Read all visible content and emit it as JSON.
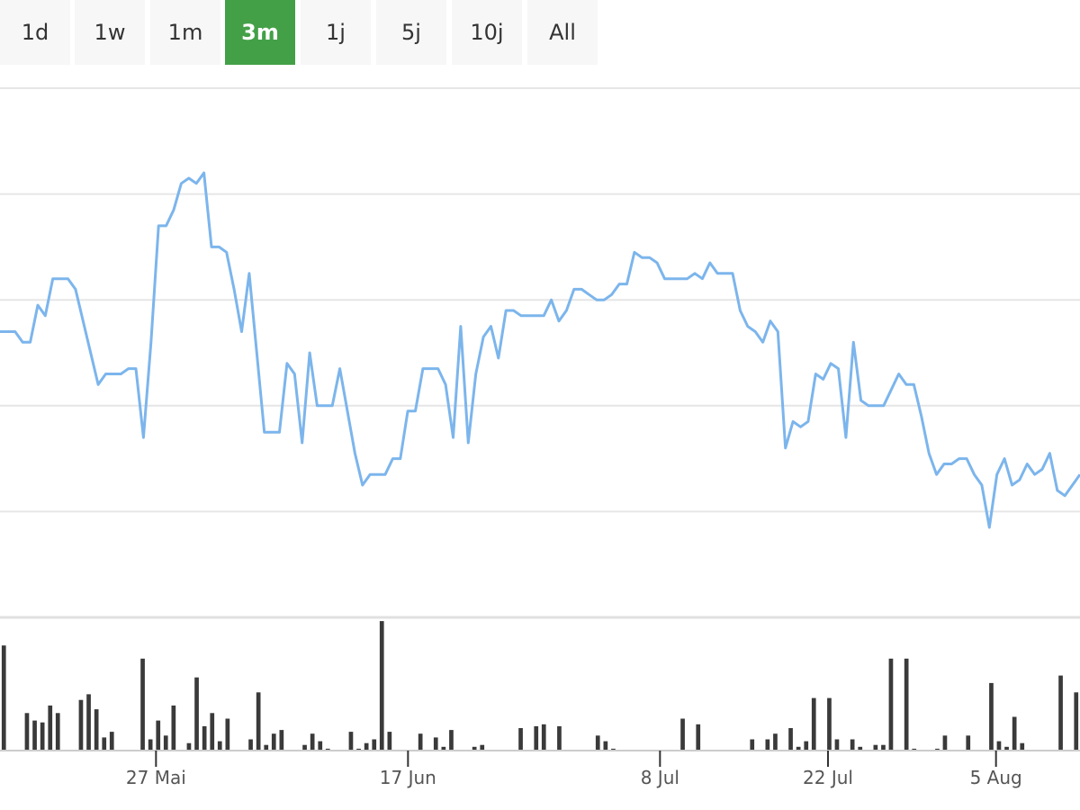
{
  "range_selector": {
    "buttons": [
      {
        "label": "1d",
        "active": false
      },
      {
        "label": "1w",
        "active": false
      },
      {
        "label": "1m",
        "active": false
      },
      {
        "label": "3m",
        "active": true
      },
      {
        "label": "1j",
        "active": false
      },
      {
        "label": "5j",
        "active": false
      },
      {
        "label": "10j",
        "active": false
      },
      {
        "label": "All",
        "active": false
      }
    ],
    "active_color": "#43a047"
  },
  "chart_data": [
    {
      "type": "line",
      "x_axis": {
        "type": "date",
        "start": "2024-05-14",
        "end": "2024-08-12",
        "ticks": [
          {
            "date": "2024-05-27",
            "label": "27 Mai"
          },
          {
            "date": "2024-06-17",
            "label": "17 Jun"
          },
          {
            "date": "2024-07-08",
            "label": "8 Jul"
          },
          {
            "date": "2024-07-22",
            "label": "22 Jul"
          },
          {
            "date": "2024-08-05",
            "label": "5 Aug"
          }
        ]
      },
      "y_axis": {
        "gridlines": 5,
        "ylim": [
          0,
          5
        ],
        "tick_labels_visible": false
      },
      "grid": true,
      "line_color": "#7cb5ec",
      "series": [
        {
          "values": [
            2.7,
            2.7,
            2.7,
            2.6,
            2.6,
            2.95,
            2.85,
            3.2,
            3.2,
            3.2,
            3.1,
            2.8,
            2.5,
            2.2,
            2.3,
            2.3,
            2.3,
            2.35,
            2.35,
            1.7,
            2.6,
            3.7,
            3.7,
            3.85,
            4.1,
            4.15,
            4.1,
            4.2,
            3.5,
            3.5,
            3.45,
            3.1,
            2.7,
            3.25,
            2.5,
            1.75,
            1.75,
            1.75,
            2.4,
            2.3,
            1.65,
            2.5,
            2.0,
            2.0,
            2.0,
            2.35,
            1.95,
            1.55,
            1.25,
            1.35,
            1.35,
            1.35,
            1.5,
            1.5,
            1.95,
            1.95,
            2.35,
            2.35,
            2.35,
            2.2,
            1.7,
            2.75,
            1.65,
            2.3,
            2.65,
            2.75,
            2.45,
            2.9,
            2.9,
            2.85,
            2.85,
            2.85,
            2.85,
            3.0,
            2.8,
            2.9,
            3.1,
            3.1,
            3.05,
            3.0,
            3.0,
            3.05,
            3.15,
            3.15,
            3.45,
            3.4,
            3.4,
            3.35,
            3.2,
            3.2,
            3.2,
            3.2,
            3.25,
            3.2,
            3.35,
            3.25,
            3.25,
            3.25,
            2.9,
            2.75,
            2.7,
            2.6,
            2.8,
            2.7,
            1.6,
            1.85,
            1.8,
            1.85,
            2.3,
            2.25,
            2.4,
            2.35,
            1.7,
            2.6,
            2.05,
            2.0,
            2.0,
            2.0,
            2.15,
            2.3,
            2.2,
            2.2,
            1.9,
            1.55,
            1.35,
            1.45,
            1.45,
            1.5,
            1.5,
            1.35,
            1.25,
            0.85,
            1.35,
            1.5,
            1.25,
            1.3,
            1.45,
            1.35,
            1.4,
            1.55,
            1.2,
            1.15,
            1.25,
            1.35
          ]
        }
      ]
    },
    {
      "type": "bar",
      "bar_color": "#3a3a3a",
      "ylim": [
        0,
        140
      ],
      "values": [
        112,
        0,
        0,
        40,
        32,
        30,
        48,
        40,
        0,
        0,
        54,
        60,
        44,
        14,
        20,
        0,
        0,
        0,
        98,
        12,
        32,
        16,
        48,
        0,
        8,
        78,
        26,
        40,
        10,
        34,
        0,
        0,
        12,
        62,
        6,
        18,
        22,
        0,
        0,
        6,
        18,
        10,
        2,
        0,
        0,
        20,
        2,
        8,
        12,
        138,
        20,
        0,
        0,
        0,
        18,
        0,
        14,
        4,
        22,
        0,
        0,
        4,
        6,
        0,
        0,
        0,
        0,
        24,
        0,
        26,
        28,
        0,
        26,
        0,
        0,
        0,
        0,
        16,
        10,
        2,
        0,
        0,
        0,
        0,
        0,
        0,
        0,
        0,
        34,
        0,
        28,
        0,
        0,
        0,
        0,
        0,
        0,
        12,
        0,
        12,
        18,
        0,
        24,
        4,
        10,
        56,
        0,
        56,
        12,
        0,
        12,
        4,
        0,
        6,
        6,
        98,
        0,
        98,
        2,
        0,
        0,
        2,
        16,
        0,
        0,
        16,
        0,
        0,
        72,
        10,
        4,
        36,
        8,
        0,
        0,
        0,
        0,
        80,
        0,
        62
      ]
    }
  ]
}
